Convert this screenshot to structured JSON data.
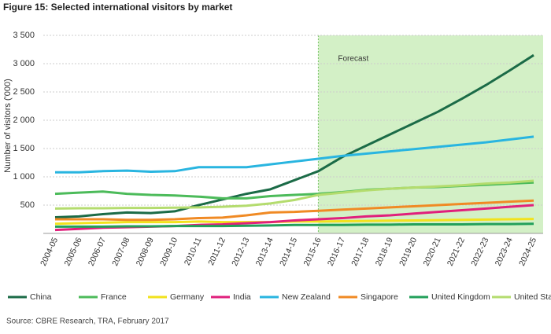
{
  "chart_data": {
    "type": "line",
    "title": "Figure 15: Selected international visitors by market",
    "y_label": "Number of visitors ('000)",
    "source": "Source: CBRE Research, TRA, February 2017",
    "annotation": "Forecast",
    "forecast_from": "2015-16",
    "categories": [
      "2004-05",
      "2005-06",
      "2006-07",
      "2007-08",
      "2008-09",
      "2009-10",
      "2010-11",
      "2011-12",
      "2012-13",
      "2013-14",
      "2014-15",
      "2015-16",
      "2016-17",
      "2017-18",
      "2018-19",
      "2019-20",
      "2020-21",
      "2021-22",
      "2022-23",
      "2023-24",
      "2024-25"
    ],
    "ylim": [
      0,
      3500
    ],
    "yticks": [
      500,
      {
        "value": 1000,
        "label": "1 000"
      },
      {
        "value": 1500,
        "label": "1 500"
      },
      {
        "value": 2000,
        "label": "2 000"
      },
      {
        "value": 2500,
        "label": "2 500"
      },
      {
        "value": 3000,
        "label": "3 000"
      },
      {
        "value": 3500,
        "label": "3 500"
      }
    ],
    "series": [
      {
        "name": "China",
        "color": "#1b6b47",
        "values": [
          285,
          300,
          340,
          370,
          360,
          390,
          500,
          600,
          700,
          780,
          940,
          1100,
          1350,
          1550,
          1750,
          1950,
          2150,
          2380,
          2620,
          2880,
          3150
        ]
      },
      {
        "name": "France",
        "color": "#4cbb5a",
        "values": [
          700,
          720,
          740,
          700,
          680,
          670,
          650,
          620,
          620,
          660,
          680,
          700,
          730,
          770,
          790,
          810,
          820,
          840,
          860,
          880,
          900
        ]
      },
      {
        "name": "Germany",
        "color": "#f2e21c",
        "values": [
          170,
          180,
          190,
          200,
          200,
          200,
          210,
          200,
          200,
          200,
          210,
          210,
          215,
          220,
          225,
          230,
          235,
          240,
          245,
          250,
          255
        ]
      },
      {
        "name": "India",
        "color": "#e0207c",
        "values": [
          60,
          80,
          100,
          110,
          120,
          130,
          150,
          160,
          180,
          200,
          230,
          250,
          270,
          300,
          320,
          350,
          380,
          410,
          440,
          470,
          500
        ]
      },
      {
        "name": "New Zealand",
        "color": "#29b5e0",
        "values": [
          1080,
          1080,
          1100,
          1110,
          1090,
          1100,
          1170,
          1170,
          1170,
          1220,
          1270,
          1320,
          1370,
          1410,
          1450,
          1490,
          1530,
          1570,
          1610,
          1660,
          1710
        ]
      },
      {
        "name": "Singapore",
        "color": "#f08a24",
        "values": [
          250,
          250,
          250,
          240,
          240,
          250,
          270,
          280,
          320,
          370,
          380,
          400,
          420,
          440,
          460,
          480,
          500,
          520,
          540,
          560,
          580
        ]
      },
      {
        "name": "United Kingdom",
        "color": "#22a05a",
        "values": [
          120,
          120,
          120,
          125,
          125,
          130,
          130,
          130,
          135,
          140,
          150,
          150,
          150,
          155,
          155,
          160,
          160,
          160,
          165,
          165,
          170
        ]
      },
      {
        "name": "United States",
        "color": "#b4dc6e",
        "values": [
          440,
          445,
          445,
          450,
          450,
          455,
          460,
          470,
          490,
          530,
          590,
          680,
          720,
          760,
          790,
          810,
          830,
          850,
          880,
          900,
          930
        ]
      }
    ]
  }
}
